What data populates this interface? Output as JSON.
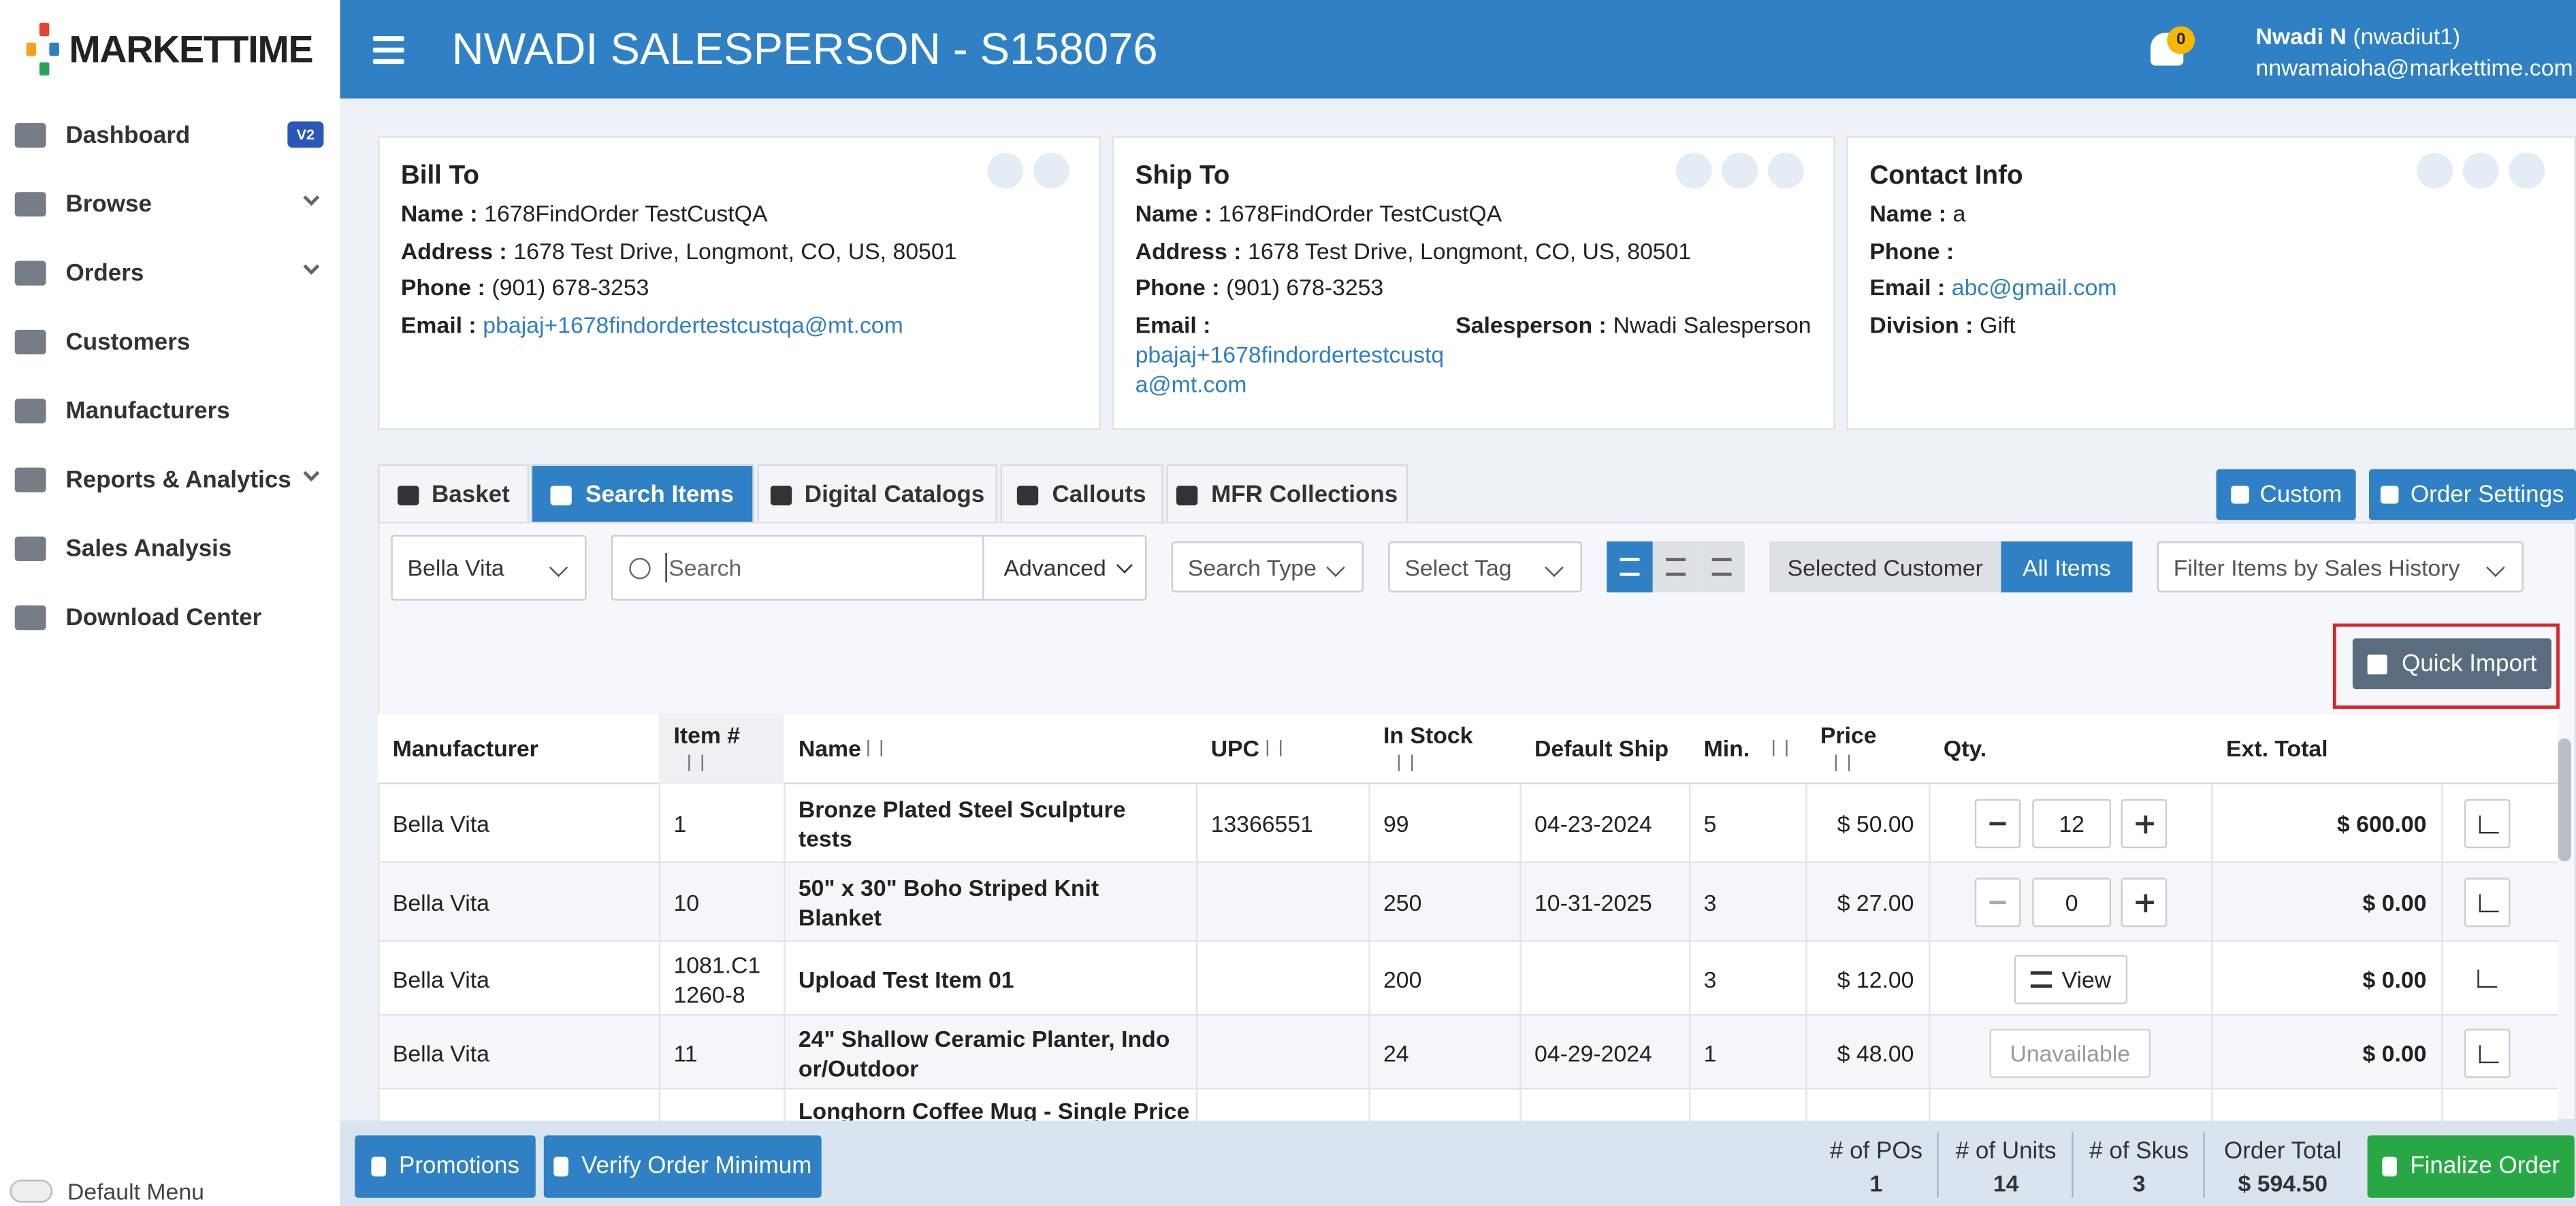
{
  "brand": "MARKETTIME",
  "header": {
    "title": "NWADI SALESPERSON - S158076",
    "notifications": "0",
    "user_name": "Nwadi N",
    "user_id": "(nwadiut1)",
    "user_email": "nnwamaioha@markettime.com"
  },
  "sidebar": {
    "items": [
      {
        "label": "Dashboard",
        "badge": "V2"
      },
      {
        "label": "Browse",
        "submenu": true
      },
      {
        "label": "Orders",
        "submenu": true
      },
      {
        "label": "Customers"
      },
      {
        "label": "Manufacturers"
      },
      {
        "label": "Reports & Analytics",
        "submenu": true
      },
      {
        "label": "Sales Analysis"
      },
      {
        "label": "Download Center"
      }
    ],
    "toggle": "Default Menu"
  },
  "cards": [
    {
      "title": "Bill To",
      "fields": [
        {
          "label": "Name :",
          "value": "1678FindOrder TestCustQA"
        },
        {
          "label": "Address :",
          "value": "1678 Test Drive, Longmont, CO, US, 80501"
        },
        {
          "label": "Phone :",
          "value": "(901) 678-3253"
        },
        {
          "label": "Email :",
          "value": "pbajaj+1678findordertestcustqa@mt.com",
          "link": true
        }
      ]
    },
    {
      "title": "Ship To",
      "fields": [
        {
          "label": "Name :",
          "value": "1678FindOrder TestCustQA"
        },
        {
          "label": "Address :",
          "value": "1678 Test Drive, Longmont, CO, US, 80501"
        },
        {
          "label": "Phone :",
          "value": "(901) 678-3253"
        },
        {
          "label": "Email :",
          "value": "pbajaj+1678findordertestcustqa@mt.com",
          "link": true
        },
        {
          "label": "Salesperson :",
          "value": "Nwadi Salesperson"
        }
      ]
    },
    {
      "title": "Contact Info",
      "fields": [
        {
          "label": "Name :",
          "value": "a"
        },
        {
          "label": "Phone :",
          "value": null
        },
        {
          "label": "Email :",
          "value": "abc@gmail.com",
          "link": true
        },
        {
          "label": "Division :",
          "value": "Gift"
        }
      ]
    }
  ],
  "tabs": [
    {
      "label": "Basket"
    },
    {
      "label": "Search Items",
      "active": true
    },
    {
      "label": "Digital Catalogs"
    },
    {
      "label": "Callouts"
    },
    {
      "label": "MFR Collections"
    }
  ],
  "actions": {
    "custom": "Custom",
    "order_settings": "Order Settings"
  },
  "filters": {
    "manufacturer": "Bella Vita",
    "search_placeholder": "Search",
    "advanced": "Advanced",
    "search_type": "Search Type",
    "select_tag": "Select Tag",
    "selected_customer": "Selected Customer",
    "all_items": "All Items",
    "sales_history": "Filter Items by Sales History",
    "quick_import": "Quick Import"
  },
  "table": {
    "columns": [
      "Manufacturer",
      "Item #",
      "Name",
      "UPC",
      "In Stock",
      "Default Ship",
      "Min.",
      "Price",
      "Qty.",
      "Ext. Total"
    ],
    "rows": [
      [
        "Bella Vita",
        "1",
        "Bronze Plated Steel Sculpture tests",
        "13366551",
        "99",
        "04-23-2024",
        "5",
        "$ 50.00",
        12,
        "$ 600.00"
      ],
      [
        "Bella Vita",
        "10",
        "50\" x 30\" Boho Striped Knit Blanket",
        null,
        "250",
        "10-31-2025",
        "3",
        "$ 27.00",
        0,
        "$ 0.00"
      ],
      [
        "Bella Vita",
        "1081.C11260-8",
        "Upload Test Item 01",
        null,
        "200",
        null,
        "3",
        "$ 12.00",
        "View",
        "$ 0.00"
      ],
      [
        "Bella Vita",
        "11",
        "24\" Shallow Ceramic Planter, Indoor/Outdoor",
        null,
        "24",
        "04-29-2024",
        "1",
        "$ 48.00",
        "Unavailable",
        "$ 0.00"
      ],
      [
        null,
        null,
        "Longhorn Coffee Mug - Single Price",
        null,
        null,
        null,
        null,
        null,
        null,
        null
      ]
    ]
  },
  "footer": {
    "promotions": "Promotions",
    "verify": "Verify Order Minimum",
    "stats": [
      {
        "label": "# of POs",
        "value": "1"
      },
      {
        "label": "# of Units",
        "value": "14"
      },
      {
        "label": "# of Skus",
        "value": "3"
      },
      {
        "label": "Order Total",
        "value": "$ 594.50"
      }
    ],
    "finalize": "Finalize Order"
  }
}
